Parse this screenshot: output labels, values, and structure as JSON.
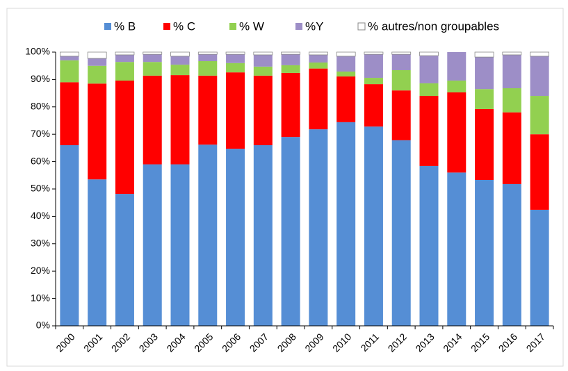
{
  "chart_data": {
    "type": "stacked_bar",
    "categories": [
      "2000",
      "2001",
      "2002",
      "2003",
      "2004",
      "2005",
      "2006",
      "2007",
      "2008",
      "2009",
      "2010",
      "2011",
      "2012",
      "2013",
      "2014",
      "2015",
      "2016",
      "2017"
    ],
    "series": [
      {
        "name": "% B",
        "color": "#558ed5",
        "values": [
          66,
          53.5,
          48.2,
          59,
          59,
          66.2,
          64.7,
          66,
          69,
          71.8,
          74.4,
          72.8,
          67.8,
          58.4,
          56,
          53.3,
          51.8,
          42.4
        ]
      },
      {
        "name": "% C",
        "color": "#ff0000",
        "values": [
          23,
          35,
          41.4,
          32.4,
          32.6,
          25.2,
          27.9,
          25.4,
          23.4,
          22.2,
          16.7,
          15.5,
          18.2,
          25.6,
          29.3,
          25.9,
          26.2,
          27.6
        ]
      },
      {
        "name": "% W",
        "color": "#92d050",
        "values": [
          8,
          6.5,
          6.8,
          5,
          3.8,
          5.3,
          3.4,
          3.3,
          2.8,
          2.2,
          1.8,
          2.3,
          7.4,
          4.6,
          4.3,
          7.3,
          8.8,
          14
        ]
      },
      {
        "name": "%Y",
        "color": "#9d8ec7",
        "values": [
          1.5,
          2.7,
          2.6,
          2.8,
          3.1,
          2.5,
          3.2,
          4.3,
          4,
          2.8,
          5.6,
          8.6,
          5.8,
          10.1,
          10.4,
          11.7,
          12.2,
          14.5
        ]
      },
      {
        "name": "% autres/non groupables",
        "color": "#ffffff",
        "values": [
          1.5,
          2.3,
          1,
          0.8,
          1.5,
          0.8,
          0.8,
          1,
          0.8,
          1,
          1.5,
          0.8,
          0.8,
          1.3,
          0,
          1.8,
          1,
          1.5
        ]
      }
    ],
    "ylim": [
      0,
      100
    ],
    "yticks": [
      {
        "value": 0,
        "label": "0%"
      },
      {
        "value": 10,
        "label": "10%"
      },
      {
        "value": 20,
        "label": "20%"
      },
      {
        "value": 30,
        "label": "30%"
      },
      {
        "value": 40,
        "label": "40%"
      },
      {
        "value": 50,
        "label": "50%"
      },
      {
        "value": 60,
        "label": "60%"
      },
      {
        "value": 70,
        "label": "70%"
      },
      {
        "value": 80,
        "label": "80%"
      },
      {
        "value": 90,
        "label": "90%"
      },
      {
        "value": 100,
        "label": "100%"
      }
    ],
    "legend": "top"
  }
}
